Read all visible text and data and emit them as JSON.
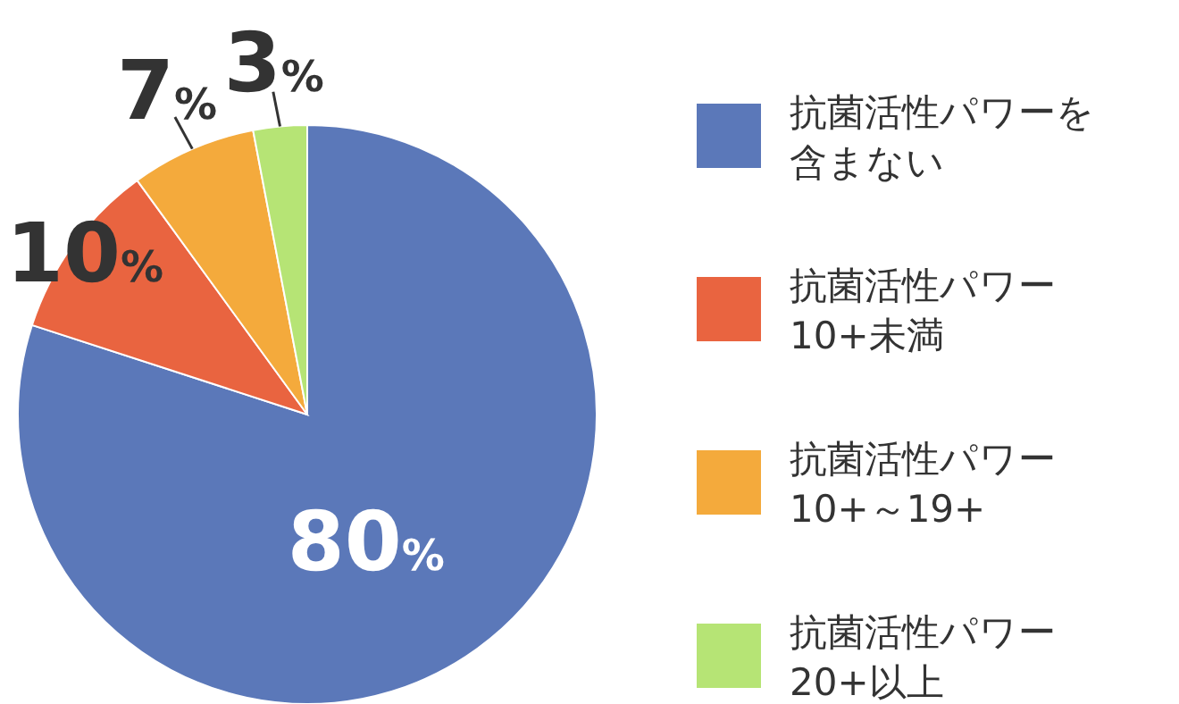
{
  "chart_data": {
    "type": "pie",
    "categories": [
      "抗菌活性パワーを含まない",
      "抗菌活性パワー10+未満",
      "抗菌活性パワー10+～19+",
      "抗菌活性パワー20+以上"
    ],
    "values": [
      80,
      10,
      7,
      3
    ],
    "colors": [
      "#5b78b9",
      "#e96440",
      "#f4aa3c",
      "#b6e475"
    ],
    "value_labels": [
      "80%",
      "10%",
      "7%",
      "3%"
    ],
    "legend": "right"
  }
}
